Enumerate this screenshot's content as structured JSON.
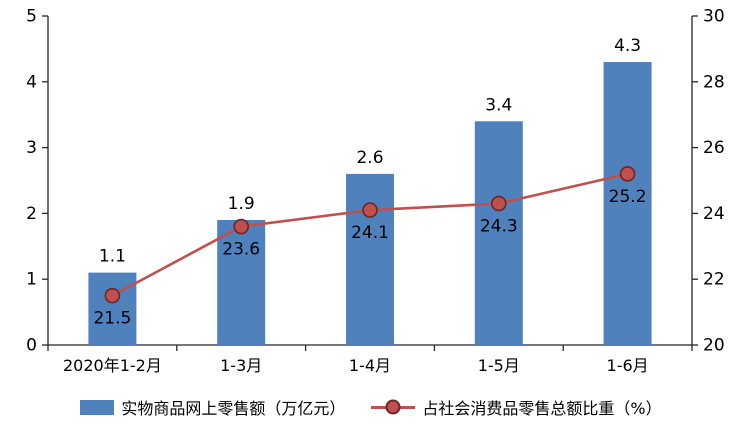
{
  "chart_data": {
    "type": "combo",
    "title": "",
    "categories": [
      "2020年1-2月",
      "1-3月",
      "1-4月",
      "1-5月",
      "1-6月"
    ],
    "series": [
      {
        "name": "实物商品网上零售额（万亿元）",
        "type": "bar",
        "axis": "left",
        "values": [
          1.1,
          1.9,
          2.6,
          3.4,
          4.3
        ],
        "labels": [
          "1.1",
          "1.9",
          "2.6",
          "3.4",
          "4.3"
        ],
        "color": "#4f81bd"
      },
      {
        "name": "占社会消费品零售总额比重（%）",
        "type": "line",
        "axis": "right",
        "values": [
          21.5,
          23.6,
          24.1,
          24.3,
          25.2
        ],
        "labels": [
          "21.5",
          "23.6",
          "24.1",
          "24.3",
          "25.2"
        ],
        "color": "#c0504d",
        "marker": {
          "fill": "#c0504d",
          "stroke": "#6e2422"
        }
      }
    ],
    "axes": {
      "left": {
        "min": 0,
        "max": 5,
        "step": 1,
        "tick_labels": [
          "0",
          "1",
          "2",
          "3",
          "4",
          "5"
        ]
      },
      "right": {
        "min": 20,
        "max": 30,
        "step": 2,
        "tick_labels": [
          "20",
          "22",
          "24",
          "26",
          "28",
          "30"
        ]
      }
    },
    "grid": false,
    "legend_position": "bottom",
    "colors": {
      "axis": "#262626",
      "text": "#000000",
      "background": "#ffffff"
    }
  }
}
